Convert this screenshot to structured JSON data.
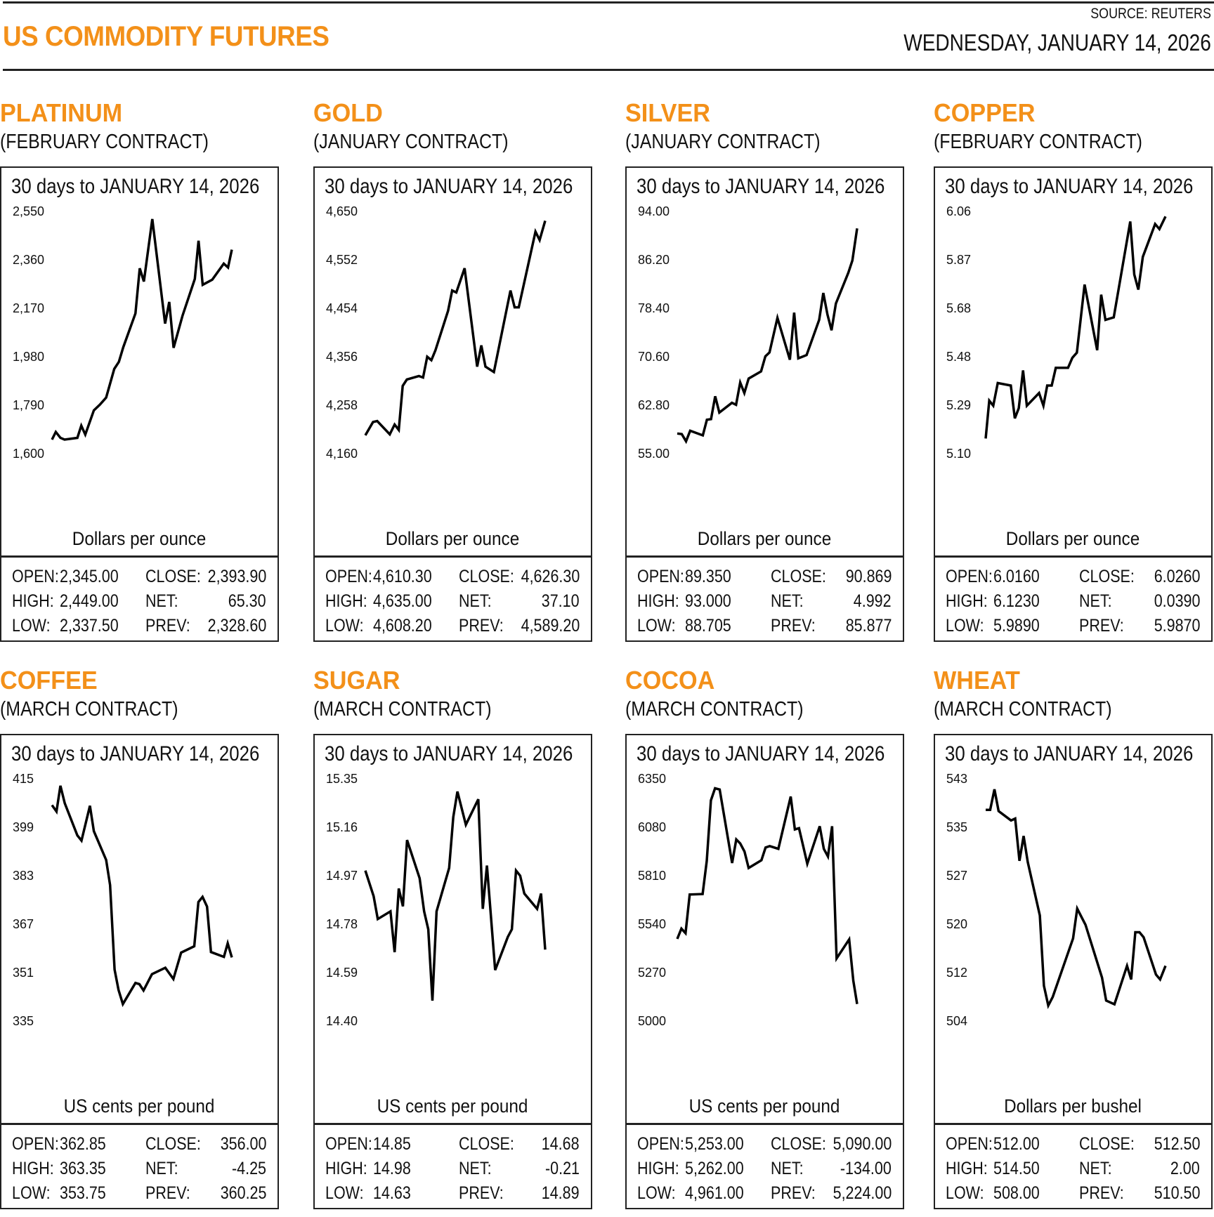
{
  "header": {
    "title": "US COMMODITY FUTURES",
    "source": "SOURCE: REUTERS",
    "date": "WEDNESDAY, JANUARY 14, 2026"
  },
  "accent_color": "#F39019",
  "stat_labels": {
    "open": "OPEN:",
    "high": "HIGH:",
    "low": "LOW:",
    "close": "CLOSE:",
    "net": "NET:",
    "prev": "PREV:"
  },
  "chart_data": [
    {
      "type": "line",
      "name": "PLATINUM",
      "contract": "(FEBRUARY CONTRACT)",
      "title": "30 days to JANUARY 14, 2026",
      "ylabel": "Dollars per ounce",
      "yticks": [
        "2,550",
        "2,360",
        "2,170",
        "1,980",
        "1,790",
        "1,600"
      ],
      "ylim": [
        1600,
        2550
      ],
      "values": [
        1655,
        1685,
        1662,
        1655,
        1662,
        1710,
        1675,
        1770,
        1792,
        1820,
        1932,
        1960,
        2017,
        2150,
        2327,
        2275,
        2520,
        2110,
        2195,
        2015,
        2142,
        2285,
        2435,
        2262,
        2282,
        2345,
        2330,
        2400
      ],
      "x_positions": [
        0,
        0.021,
        0.047,
        0.07,
        0.141,
        0.163,
        0.185,
        0.233,
        0.266,
        0.301,
        0.346,
        0.372,
        0.396,
        0.464,
        0.488,
        0.511,
        0.558,
        0.629,
        0.652,
        0.676,
        0.726,
        0.794,
        0.815,
        0.838,
        0.891,
        0.955,
        0.979,
        1
      ],
      "stats": {
        "open": "2,345.00",
        "high": "2,449.00",
        "low": "2,337.50",
        "close": "2,393.90",
        "net": "65.30",
        "prev": "2,328.60"
      }
    },
    {
      "type": "line",
      "name": "GOLD",
      "contract": "(JANUARY CONTRACT)",
      "title": "30 days to JANUARY 14, 2026",
      "ylabel": "Dollars per ounce",
      "yticks": [
        "4,650",
        "4,552",
        "4,454",
        "4,356",
        "4,258",
        "4,160"
      ],
      "ylim": [
        4160,
        4650
      ],
      "values": [
        4197,
        4224,
        4226,
        4199,
        4219,
        4208,
        4297,
        4310,
        4317,
        4314,
        4356,
        4349,
        4369,
        4449,
        4490,
        4486,
        4535,
        4336,
        4379,
        4336,
        4325,
        4490,
        4456,
        4456,
        4609,
        4592,
        4631
      ],
      "x_positions": [
        0,
        0.043,
        0.066,
        0.136,
        0.163,
        0.186,
        0.208,
        0.231,
        0.298,
        0.321,
        0.344,
        0.367,
        0.39,
        0.46,
        0.483,
        0.506,
        0.552,
        0.622,
        0.645,
        0.668,
        0.715,
        0.807,
        0.83,
        0.853,
        0.946,
        0.969,
        1
      ],
      "stats": {
        "open": "4,610.30",
        "high": "4,635.00",
        "low": "4,608.20",
        "close": "4,626.30",
        "net": "37.10",
        "prev": "4,589.20"
      }
    },
    {
      "type": "line",
      "name": "SILVER",
      "contract": "(JANUARY CONTRACT)",
      "title": "30 days to JANUARY 14, 2026",
      "ylabel": "Dollars per ounce",
      "yticks": [
        "94.00",
        "86.20",
        "78.40",
        "70.60",
        "62.80",
        "55.00"
      ],
      "ylim": [
        55.0,
        94.0
      ],
      "values": [
        58.25,
        58.15,
        56.99,
        58.68,
        57.94,
        60.46,
        60.56,
        64.24,
        61.61,
        63.19,
        62.87,
        66.45,
        64.77,
        67.08,
        68.24,
        70.66,
        71.29,
        76.86,
        70.13,
        77.7,
        70.34,
        70.87,
        76.54,
        80.86,
        77.39,
        74.86,
        79.17,
        84.12,
        86.11,
        91.27
      ],
      "x_positions": [
        0,
        0.025,
        0.049,
        0.072,
        0.142,
        0.165,
        0.188,
        0.211,
        0.234,
        0.304,
        0.327,
        0.35,
        0.373,
        0.397,
        0.466,
        0.49,
        0.513,
        0.557,
        0.626,
        0.65,
        0.673,
        0.719,
        0.789,
        0.812,
        0.835,
        0.858,
        0.882,
        0.951,
        0.974,
        1
      ],
      "stats": {
        "open": "89.350",
        "high": "93.000",
        "low": "88.705",
        "close": "90.869",
        "net": "4.992",
        "prev": "85.877"
      }
    },
    {
      "type": "line",
      "name": "COPPER",
      "contract": "(FEBRUARY CONTRACT)",
      "title": "30 days to JANUARY 14, 2026",
      "ylabel": "Dollars per ounce",
      "yticks": [
        "6.06",
        "5.87",
        "5.68",
        "5.48",
        "5.29",
        "5.10"
      ],
      "ylim": [
        5.1,
        6.06
      ],
      "values": [
        5.16,
        5.31,
        5.29,
        5.38,
        5.37,
        5.24,
        5.28,
        5.43,
        5.29,
        5.34,
        5.29,
        5.37,
        5.37,
        5.44,
        5.44,
        5.48,
        5.5,
        5.77,
        5.51,
        5.73,
        5.63,
        5.64,
        6.02,
        5.81,
        5.75,
        5.88,
        6.01,
        5.99,
        6.04
      ],
      "x_positions": [
        0,
        0.02,
        0.042,
        0.067,
        0.14,
        0.162,
        0.184,
        0.208,
        0.229,
        0.297,
        0.321,
        0.342,
        0.367,
        0.39,
        0.458,
        0.482,
        0.507,
        0.55,
        0.62,
        0.642,
        0.666,
        0.712,
        0.804,
        0.826,
        0.849,
        0.874,
        0.942,
        0.966,
        1
      ],
      "stats": {
        "open": "6.0160",
        "high": "6.1230",
        "low": "5.9890",
        "close": "6.0260",
        "net": "0.0390",
        "prev": "5.9870"
      }
    },
    {
      "type": "line",
      "name": "COFFEE",
      "contract": "(MARCH CONTRACT)",
      "title": "30 days to JANUARY 14, 2026",
      "ylabel": "US cents per pound",
      "yticks": [
        "415",
        "399",
        "383",
        "367",
        "351",
        "335"
      ],
      "ylim": [
        335,
        415
      ],
      "values": [
        406.3,
        404.2,
        412.7,
        406.9,
        396.3,
        394.6,
        406.1,
        397.7,
        388.2,
        379.9,
        352.0,
        345.3,
        340.6,
        347.6,
        347.2,
        345.1,
        350.5,
        352.6,
        348.9,
        357.6,
        359.7,
        374.3,
        376.0,
        372.8,
        357.8,
        356.2,
        360.7,
        356.0
      ],
      "x_positions": [
        0,
        0.025,
        0.047,
        0.071,
        0.141,
        0.164,
        0.211,
        0.233,
        0.301,
        0.323,
        0.348,
        0.37,
        0.394,
        0.464,
        0.486,
        0.509,
        0.556,
        0.63,
        0.675,
        0.718,
        0.791,
        0.814,
        0.837,
        0.862,
        0.884,
        0.956,
        0.977,
        1
      ],
      "stats": {
        "open": "362.85",
        "high": "363.35",
        "low": "353.75",
        "close": "356.00",
        "net": "-4.25",
        "prev": "360.25"
      }
    },
    {
      "type": "line",
      "name": "SUGAR",
      "contract": "(MARCH CONTRACT)",
      "title": "30 days to JANUARY 14, 2026",
      "ylabel": "US cents per pound",
      "yticks": [
        "15.35",
        "15.16",
        "14.97",
        "14.78",
        "14.59",
        "14.40"
      ],
      "ylim": [
        14.4,
        15.35
      ],
      "values": [
        14.99,
        14.89,
        14.8,
        14.83,
        14.67,
        14.92,
        14.85,
        15.11,
        14.96,
        14.83,
        14.76,
        14.48,
        14.83,
        15.0,
        15.2,
        15.3,
        15.17,
        15.27,
        14.84,
        15.01,
        14.6,
        14.73,
        14.76,
        14.99,
        14.97,
        14.9,
        14.84,
        14.9,
        14.68
      ],
      "x_positions": [
        0,
        0.046,
        0.069,
        0.14,
        0.163,
        0.186,
        0.209,
        0.232,
        0.302,
        0.327,
        0.35,
        0.373,
        0.396,
        0.466,
        0.489,
        0.512,
        0.559,
        0.628,
        0.653,
        0.676,
        0.722,
        0.792,
        0.815,
        0.838,
        0.861,
        0.884,
        0.955,
        0.977,
        1
      ],
      "stats": {
        "open": "14.85",
        "high": "14.98",
        "low": "14.63",
        "close": "14.68",
        "net": "-0.21",
        "prev": "14.89"
      }
    },
    {
      "type": "line",
      "name": "COCOA",
      "contract": "(MARCH CONTRACT)",
      "title": "30 days to JANUARY 14, 2026",
      "ylabel": "US cents per pound",
      "yticks": [
        "6350",
        "6080",
        "5810",
        "5540",
        "5270",
        "5000"
      ],
      "ylim": [
        5000,
        6350
      ],
      "values": [
        5458,
        5515,
        5490,
        5705,
        5708,
        5892,
        6230,
        6297,
        6290,
        5881,
        6012,
        5990,
        5945,
        5853,
        5896,
        5967,
        5975,
        5960,
        6251,
        6068,
        6075,
        5877,
        6086,
        5960,
        5917,
        6086,
        5349,
        5455,
        5225,
        5095
      ],
      "x_positions": [
        0,
        0.023,
        0.046,
        0.069,
        0.141,
        0.164,
        0.187,
        0.21,
        0.236,
        0.305,
        0.328,
        0.35,
        0.374,
        0.397,
        0.468,
        0.491,
        0.514,
        0.562,
        0.631,
        0.654,
        0.677,
        0.723,
        0.792,
        0.815,
        0.838,
        0.861,
        0.886,
        0.956,
        0.979,
        1
      ],
      "stats": {
        "open": "5,253.00",
        "high": "5,262.00",
        "low": "4,961.00",
        "close": "5,090.00",
        "net": "-134.00",
        "prev": "5,224.00"
      }
    },
    {
      "type": "line",
      "name": "WHEAT",
      "contract": "(MARCH CONTRACT)",
      "title": "30 days to JANUARY 14, 2026",
      "ylabel": "Dollars per bushel",
      "yticks": [
        "543",
        "535",
        "527",
        "520",
        "512",
        "504"
      ],
      "ylim": [
        504,
        543
      ],
      "values": [
        538.0,
        538.0,
        541.3,
        537.8,
        536.3,
        536.6,
        529.8,
        533.8,
        529.6,
        521.0,
        509.7,
        506.5,
        507.9,
        517.3,
        522.1,
        519.5,
        511.0,
        507.3,
        506.7,
        512.9,
        510.7,
        518.3,
        518.3,
        517.5,
        511.5,
        510.7,
        512.9
      ],
      "x_positions": [
        0,
        0.025,
        0.049,
        0.072,
        0.141,
        0.164,
        0.188,
        0.211,
        0.234,
        0.301,
        0.324,
        0.348,
        0.373,
        0.486,
        0.509,
        0.555,
        0.647,
        0.67,
        0.716,
        0.786,
        0.809,
        0.832,
        0.855,
        0.878,
        0.947,
        0.97,
        1
      ],
      "stats": {
        "open": "512.00",
        "high": "514.50",
        "low": "508.00",
        "close": "512.50",
        "net": "2.00",
        "prev": "510.50"
      }
    }
  ]
}
